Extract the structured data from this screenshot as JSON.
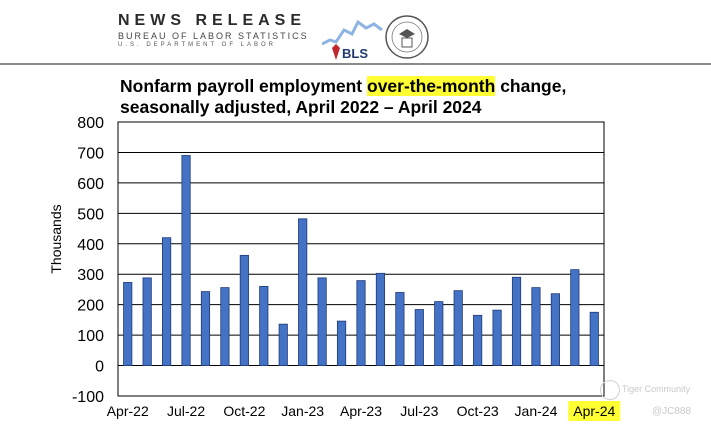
{
  "header": {
    "title": "NEWS RELEASE",
    "subtitle": "BUREAU OF LABOR STATISTICS",
    "department": "U.S. DEPARTMENT OF LABOR",
    "logo_text": "BLS"
  },
  "chart_data": {
    "type": "bar",
    "title_parts": [
      "Nonfarm payroll employment ",
      "over-the-month",
      " change,"
    ],
    "title_line2": "seasonally adjusted, April 2022 – April 2024",
    "ylabel": "Thousands",
    "xlabel": "",
    "ylim": [
      -100,
      800
    ],
    "yticks": [
      -100,
      0,
      100,
      200,
      300,
      400,
      500,
      600,
      700,
      800
    ],
    "grid": true,
    "x_tick_labels": [
      "Apr-22",
      "Jul-22",
      "Oct-22",
      "Jan-23",
      "Apr-23",
      "Jul-23",
      "Oct-23",
      "Jan-24",
      "Apr-24"
    ],
    "x_tick_highlight": "Apr-24",
    "categories": [
      "Apr-22",
      "May-22",
      "Jun-22",
      "Jul-22",
      "Aug-22",
      "Sep-22",
      "Oct-22",
      "Nov-22",
      "Dec-22",
      "Jan-23",
      "Feb-23",
      "Mar-23",
      "Apr-23",
      "May-23",
      "Jun-23",
      "Jul-23",
      "Aug-23",
      "Sep-23",
      "Oct-23",
      "Nov-23",
      "Dec-23",
      "Jan-24",
      "Feb-24",
      "Mar-24",
      "Apr-24"
    ],
    "values": [
      273,
      288,
      420,
      690,
      243,
      256,
      362,
      260,
      136,
      482,
      288,
      146,
      279,
      303,
      240,
      184,
      210,
      246,
      165,
      182,
      290,
      256,
      236,
      315,
      175
    ],
    "bar_color": "#4472c4",
    "highlight_color": "#ffff33"
  },
  "watermark": {
    "line1": "Tiger Community",
    "line2": "@JC888"
  }
}
